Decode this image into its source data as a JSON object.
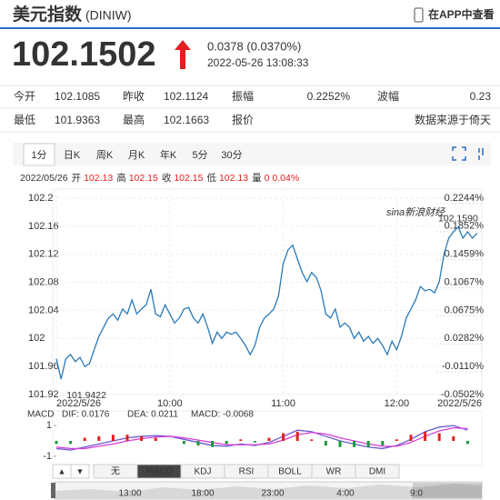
{
  "header": {
    "title": "美元指数",
    "code": "(DINIW)",
    "app_link": "在APP中查看"
  },
  "quote": {
    "price": "102.1502",
    "change": "0.0378 (0.0370%)",
    "timestamp": "2022-05-26 13:08:33",
    "color": "#e41f1f"
  },
  "stats": {
    "rows": [
      [
        {
          "label": "今开",
          "value": "102.1085"
        },
        {
          "label": "昨收",
          "value": "102.1124"
        },
        {
          "label": "振幅",
          "value": "0.2252%"
        },
        {
          "label": "波幅",
          "value": "0.23"
        }
      ],
      [
        {
          "label": "最低",
          "value": "101.9363"
        },
        {
          "label": "最高",
          "value": "102.1663"
        },
        {
          "label": "报价"
        },
        {
          "value": "数据来源于倚天"
        }
      ]
    ]
  },
  "period_tabs": {
    "tabs": [
      "1分",
      "日K",
      "周K",
      "月K",
      "年K",
      "5分",
      "30分"
    ],
    "selected": 0
  },
  "ohlc": {
    "date": "2022/05/26",
    "items": [
      {
        "label": "开",
        "value": "102.13"
      },
      {
        "label": "高",
        "value": "102.15"
      },
      {
        "label": "收",
        "value": "102.15"
      },
      {
        "label": "低",
        "value": "102.13"
      },
      {
        "label": "量",
        "value": "0"
      },
      {
        "value": "0.04%"
      }
    ]
  },
  "chart_data": [
    {
      "type": "line",
      "watermark": "sina新浪财经",
      "color": "#2a7ab8",
      "x": [
        0,
        2.5,
        5,
        7.5,
        10,
        12.5,
        15,
        17.5,
        20,
        22.5,
        25,
        27.5,
        30,
        32.5,
        35,
        37.5,
        40,
        42.5,
        45,
        47.5,
        50,
        52.5,
        55,
        57.5,
        60,
        62.5,
        65,
        67.5,
        70,
        72.5,
        75,
        77.5,
        80,
        82.5,
        85,
        87.5,
        90,
        92.5,
        95,
        97.5,
        100,
        102.5,
        105,
        107.5,
        110,
        112.5,
        115,
        117.5,
        120,
        122.5,
        125,
        127.5,
        130,
        132.5,
        135,
        137.5,
        140,
        142.5,
        145,
        147.5,
        150,
        152.5,
        155,
        157.5,
        160,
        162.5,
        165,
        167.5,
        170,
        172.5,
        175,
        177.5,
        180,
        182.5,
        185,
        187.5,
        190,
        192.5,
        195,
        197.5,
        200,
        202.5,
        205,
        207.5,
        210,
        212.5,
        215,
        217.5,
        220,
        222.5
      ],
      "values": [
        101.971,
        101.942,
        101.971,
        101.977,
        101.967,
        101.973,
        101.96,
        101.964,
        101.984,
        102.003,
        102.016,
        102.029,
        102.035,
        102.026,
        102.042,
        102.035,
        102.055,
        102.035,
        102.042,
        102.048,
        102.07,
        102.035,
        102.031,
        102.048,
        102.035,
        102.022,
        102.029,
        102.042,
        102.044,
        102.029,
        102.022,
        102.035,
        102.016,
        101.993,
        102.009,
        102.0,
        102.009,
        102.006,
        102.009,
        102.0,
        101.99,
        101.977,
        101.99,
        102.016,
        102.029,
        102.035,
        102.042,
        102.061,
        102.107,
        102.126,
        102.133,
        102.113,
        102.094,
        102.081,
        102.094,
        102.087,
        102.068,
        102.035,
        102.029,
        102.042,
        102.016,
        102.022,
        102.016,
        102.0,
        102.009,
        101.996,
        102.003,
        101.993,
        102.0,
        101.99,
        101.977,
        101.996,
        101.984,
        102.003,
        102.029,
        102.042,
        102.055,
        102.074,
        102.068,
        102.07,
        102.065,
        102.081,
        102.12,
        102.143,
        102.152,
        102.159,
        102.143,
        102.152,
        102.143,
        102.15
      ],
      "min_label": "101.9422",
      "max_label": "102.1590",
      "xlim": [
        0,
        225
      ],
      "xticks": [
        {
          "value": 0,
          "label": "2022/5/26"
        },
        {
          "value": 60,
          "label": "10:00"
        },
        {
          "value": 120,
          "label": "11:00"
        },
        {
          "value": 180,
          "label": "12:00"
        },
        {
          "value": 225,
          "label": "2022/5/26"
        }
      ],
      "ylim": [
        101.92,
        102.2
      ],
      "yticks": [
        102.2,
        102.16,
        102.12,
        102.08,
        102.04,
        102,
        101.96,
        101.92
      ],
      "y2lim": [
        -0.0502,
        0.2244
      ],
      "y2ticks": [
        {
          "value": 0.2244,
          "label": "0.2244%"
        },
        {
          "value": 0.1852,
          "label": "0.1852%"
        },
        {
          "value": 0.1459,
          "label": "0.1459%"
        },
        {
          "value": 0.1067,
          "label": "0.1067%"
        },
        {
          "value": 0.0675,
          "label": "0.0675%"
        },
        {
          "value": 0.0282,
          "label": "0.0282%"
        },
        {
          "value": -0.011,
          "label": "-0.0110%"
        },
        {
          "value": -0.0502,
          "label": "-0.0502%"
        }
      ],
      "up_color": "#e41f1f",
      "down_color": "#1a9a3a",
      "grid": true
    },
    {
      "type": "macd",
      "title": "MACD",
      "x": [
        0,
        7.5,
        15,
        22.5,
        30,
        37.5,
        45,
        52.5,
        60,
        67.5,
        75,
        82.5,
        90,
        97.5,
        105,
        112.5,
        120,
        127.5,
        135,
        142.5,
        150,
        157.5,
        165,
        172.5,
        180,
        187.5,
        195,
        202.5,
        210,
        217.5
      ],
      "xlim": [
        0,
        225
      ],
      "ylim": [
        -1.6,
        1.6
      ],
      "yticks": [
        1,
        -1
      ],
      "series": [
        {
          "name": "DIF: 0.0176",
          "color": "#6a5acd",
          "values": [
            -0.5,
            -0.6,
            -0.4,
            -0.2,
            0.0,
            0.2,
            0.3,
            0.35,
            0.3,
            0.1,
            -0.1,
            -0.3,
            -0.35,
            -0.2,
            -0.3,
            -0.1,
            0.3,
            0.7,
            0.6,
            0.3,
            0.0,
            -0.2,
            -0.4,
            -0.5,
            -0.3,
            0.1,
            0.6,
            0.9,
            1.0,
            0.7
          ]
        },
        {
          "name": "DEA: 0.0211",
          "color": "#d63fd6",
          "values": [
            -0.4,
            -0.5,
            -0.5,
            -0.35,
            -0.2,
            0.0,
            0.15,
            0.25,
            0.3,
            0.2,
            0.05,
            -0.1,
            -0.25,
            -0.25,
            -0.25,
            -0.2,
            0.05,
            0.4,
            0.55,
            0.45,
            0.2,
            0.0,
            -0.2,
            -0.35,
            -0.35,
            -0.1,
            0.3,
            0.65,
            0.85,
            0.8
          ]
        },
        {
          "name": "MACD: -0.0068",
          "color": "#e41f1f",
          "bars": true,
          "up_color": "#e41f1f",
          "down_color": "#1a9a3a",
          "values": [
            -0.2,
            -0.2,
            0.2,
            0.3,
            0.4,
            0.4,
            0.3,
            0.2,
            0,
            -0.2,
            -0.3,
            -0.4,
            -0.2,
            0.1,
            -0.1,
            0.2,
            0.5,
            0.6,
            0.1,
            -0.3,
            -0.4,
            -0.4,
            -0.4,
            -0.3,
            0.1,
            0.4,
            0.6,
            0.5,
            0.3,
            -0.2
          ]
        }
      ]
    }
  ],
  "indicator_tabs": {
    "buttons": [
      "▲",
      "▼"
    ],
    "tabs": [
      "无",
      "MACD",
      "KDJ",
      "RSI",
      "BOLL",
      "WR",
      "DMI"
    ],
    "selected": 1
  },
  "navigator": {
    "labels": [
      "13:00",
      "18:00",
      "23:00",
      "4:00",
      "9:0"
    ]
  }
}
